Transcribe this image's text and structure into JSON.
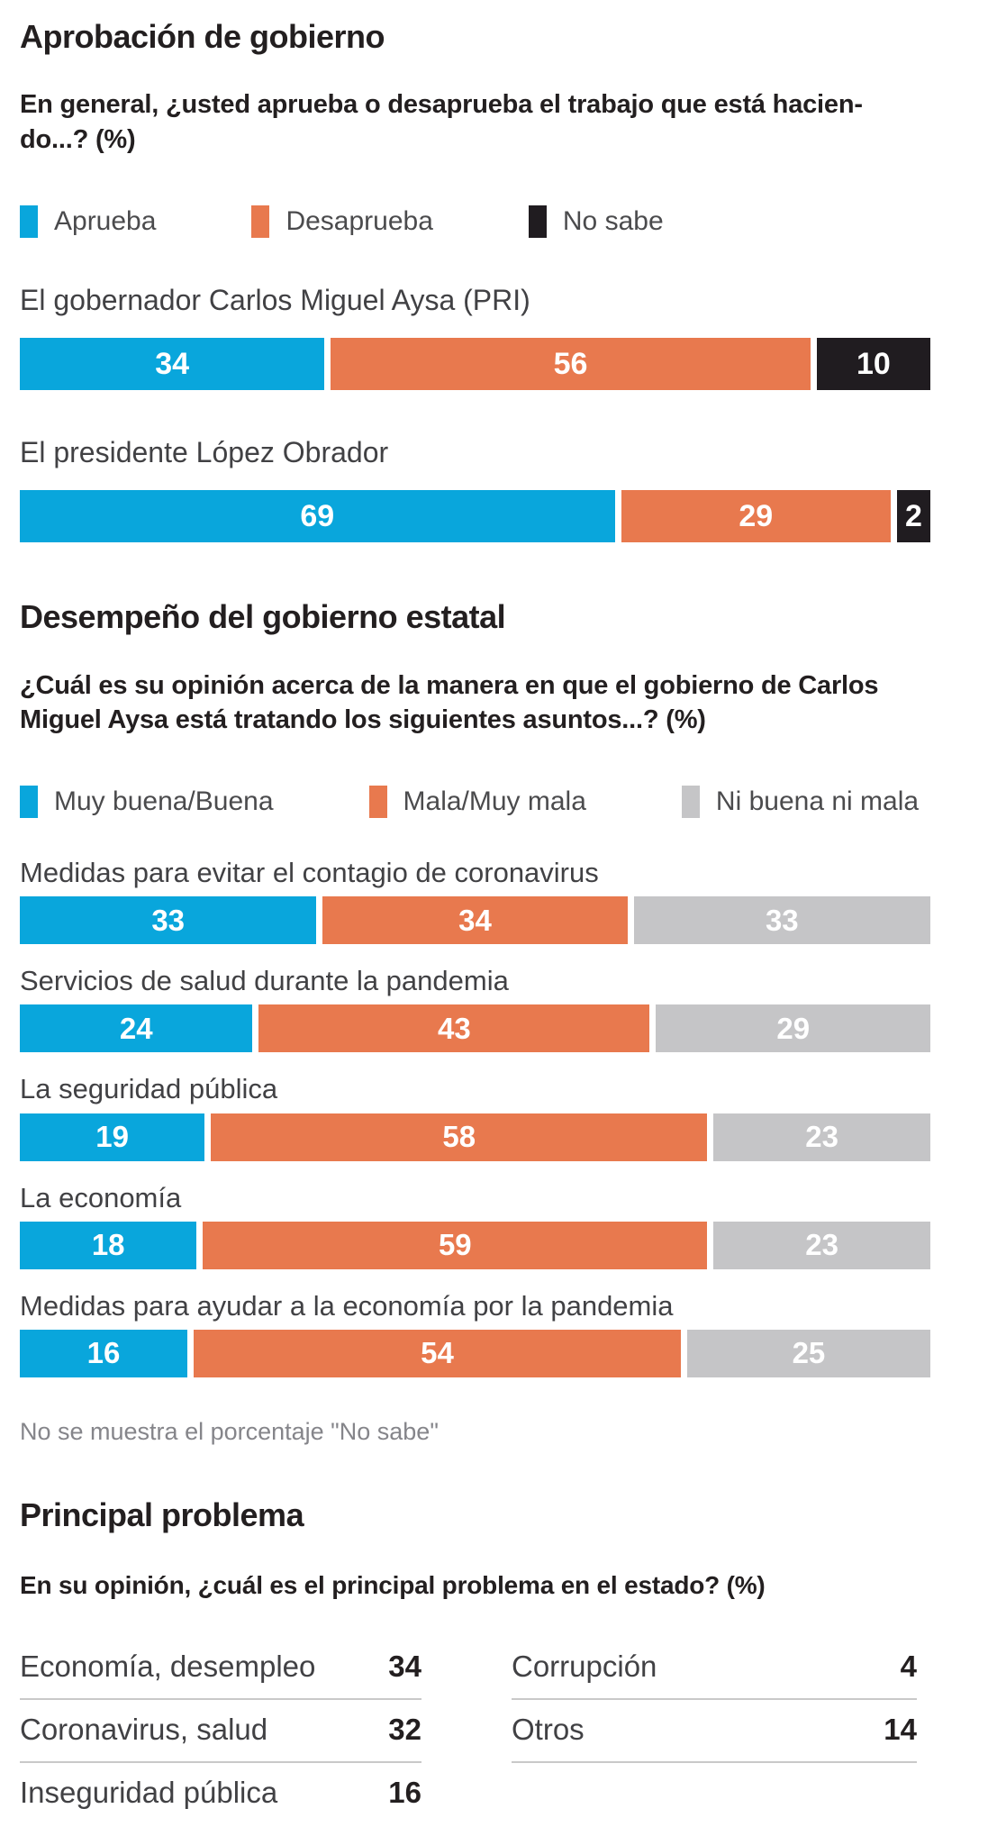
{
  "chart_data": [
    {
      "type": "bar",
      "subtype": "stacked-horizontal",
      "title": "Aprobación de gobierno",
      "question": "En general, ¿usted aprueba o desaprueba el trabajo que está haciendo...? (%)",
      "legend_position": "top",
      "grid": false,
      "xlim": [
        0,
        100
      ],
      "categories": [
        "El gobernador Carlos Miguel Aysa (PRI)",
        "El presidente López Obrador"
      ],
      "series": [
        {
          "name": "Aprueba",
          "color": "#09a6dc",
          "values": [
            34,
            69
          ]
        },
        {
          "name": "Desaprueba",
          "color": "#e8794e",
          "values": [
            56,
            29
          ]
        },
        {
          "name": "No sabe",
          "color": "#201c20",
          "values": [
            10,
            2
          ]
        }
      ]
    },
    {
      "type": "bar",
      "subtype": "stacked-horizontal",
      "title": "Desempeño del gobierno estatal",
      "question": "¿Cuál es su opinión acerca de la manera en que el gobierno de Carlos Miguel Aysa está tratando los siguientes asuntos...? (%)",
      "legend_position": "top",
      "grid": false,
      "xlim": [
        0,
        100
      ],
      "categories": [
        "Medidas para evitar el contagio de coronavirus",
        "Servicios de salud durante la pandemia",
        "La seguridad pública",
        "La economía",
        "Medidas para ayudar a la economía por la pandemia"
      ],
      "series": [
        {
          "name": "Muy buena/Buena",
          "color": "#09a6dc",
          "values": [
            33,
            24,
            19,
            18,
            16
          ]
        },
        {
          "name": "Mala/Muy mala",
          "color": "#e8794e",
          "values": [
            34,
            43,
            58,
            59,
            54
          ]
        },
        {
          "name": "Ni buena ni mala",
          "color": "#c5c5c7",
          "values": [
            33,
            29,
            23,
            23,
            25
          ]
        }
      ],
      "note": "No se muestra el porcentaje \"No sabe\""
    },
    {
      "type": "table",
      "title": "Principal problema",
      "question": "En su opinión, ¿cuál es el principal problema en el estado? (%)",
      "items": [
        {
          "label": "Economía, desempleo",
          "value": 34
        },
        {
          "label": "Coronavirus, salud",
          "value": 32
        },
        {
          "label": "Inseguridad pública",
          "value": 16
        },
        {
          "label": "Corrupción",
          "value": 4
        },
        {
          "label": "Otros",
          "value": 14
        }
      ],
      "columns": [
        {
          "side": "left",
          "item_indexes": [
            0,
            1,
            2
          ]
        },
        {
          "side": "right",
          "item_indexes": [
            3,
            4
          ]
        }
      ]
    }
  ],
  "display": {
    "question1": "En general, ¿usted aprueba o desaprueba el trabajo que está hacien-\ndo...? (%)",
    "question2": "¿Cuál es su opinión acerca de la manera en que el gobierno de Carlos\nMiguel Aysa está tratando los siguientes asuntos...? (%)"
  },
  "colors": {
    "approve_blue": "#09a6dc",
    "disapprove_orange": "#e8794e",
    "dont_know_black": "#201c20",
    "neutral_gray": "#c5c5c7",
    "heading_text": "#231f20",
    "label_text": "#414144",
    "note_text": "#85858a",
    "rule_line": "#c9c9c9"
  }
}
